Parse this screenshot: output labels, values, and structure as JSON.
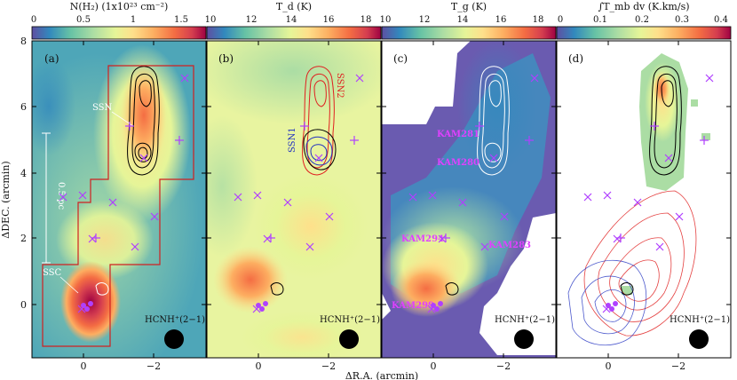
{
  "figure": {
    "xlabel": "ΔR.A. (arcmin)",
    "ylabel": "ΔDEC. (arcmin)"
  },
  "colors": {
    "frame": "#000000",
    "marker": "#b040ff",
    "outline_red": "#d02020",
    "ssn1": "#2030c0",
    "ssn2": "#e02020"
  },
  "chart_data": [
    {
      "type": "heatmap",
      "panel": "(a)",
      "title": "N(H₂) (1x10²³ cm⁻²)",
      "colorbar_ticks": [
        "0",
        "0.5",
        "1",
        "1.5"
      ],
      "colorbar_range": [
        0,
        1.75
      ],
      "xlim": [
        1.3,
        -3.5
      ],
      "ylim": [
        -1.4,
        8.0
      ],
      "xticks": [
        "0",
        "−2"
      ],
      "yticks": [
        "0",
        "2",
        "4",
        "6",
        "8"
      ],
      "annotations": [
        "SSN",
        "SSC"
      ],
      "scalebar_label": "0.5 pc",
      "beam_label": "HCNH⁺(2−1)"
    },
    {
      "type": "heatmap",
      "panel": "(b)",
      "title": "T_d (K)",
      "colorbar_ticks": [
        "10",
        "12",
        "14",
        "16",
        "18"
      ],
      "colorbar_range": [
        10,
        19
      ],
      "xticks": [
        "0",
        "−2"
      ],
      "annotations": [
        "SSN1",
        "SSN2"
      ],
      "beam_label": "HCNH⁺(2−1)"
    },
    {
      "type": "heatmap",
      "panel": "(c)",
      "title": "T_g (K)",
      "colorbar_ticks": [
        "10",
        "12",
        "14",
        "16",
        "18"
      ],
      "colorbar_range": [
        10,
        19
      ],
      "xticks": [
        "0",
        "−2"
      ],
      "annotations": [
        "KAM281",
        "KAM280",
        "KAM294",
        "KAM283",
        "KAM299"
      ],
      "beam_label": "HCNH⁺(2−1)"
    },
    {
      "type": "heatmap",
      "panel": "(d)",
      "title": "∫T_mb dv (K.km/s)",
      "colorbar_ticks": [
        "0",
        "0.1",
        "0.2",
        "0.3",
        "0.4"
      ],
      "colorbar_range": [
        0,
        0.4
      ],
      "xticks": [
        "0",
        "−2"
      ],
      "beam_label": "HCNH⁺(2−1)"
    }
  ]
}
